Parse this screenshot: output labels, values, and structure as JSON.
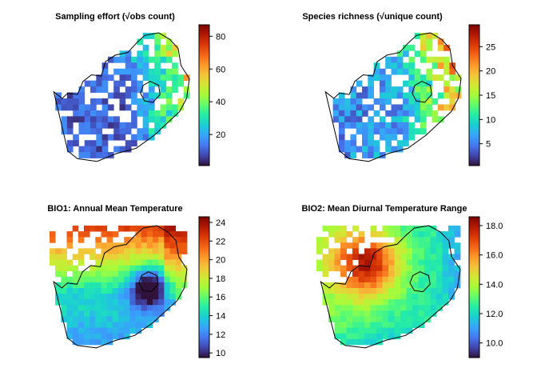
{
  "chart_data": [
    {
      "type": "heatmap",
      "title": "Sampling effort (√obs count)",
      "region": "South Africa",
      "colormap": "turbo",
      "range": [
        1,
        87
      ],
      "colorbar_ticks": [
        "20",
        "40",
        "60",
        "80"
      ],
      "colorbar_tick_values": [
        20,
        40,
        60,
        80
      ],
      "grid": false,
      "legend": "colorbar-right"
    },
    {
      "type": "heatmap",
      "title": "Species richness (√unique count)",
      "region": "South Africa",
      "colormap": "turbo",
      "range": [
        0.5,
        29.5
      ],
      "colorbar_ticks": [
        "5",
        "10",
        "15",
        "20",
        "25"
      ],
      "colorbar_tick_values": [
        5,
        10,
        15,
        20,
        25
      ],
      "grid": false,
      "legend": "colorbar-right"
    },
    {
      "type": "heatmap",
      "title": "BIO1: Annual Mean Temperature",
      "region": "South Africa",
      "colormap": "turbo",
      "range": [
        9.5,
        24.6
      ],
      "colorbar_ticks": [
        "10",
        "12",
        "14",
        "16",
        "18",
        "20",
        "22",
        "24"
      ],
      "colorbar_tick_values": [
        10,
        12,
        14,
        16,
        18,
        20,
        22,
        24
      ],
      "grid": false,
      "legend": "colorbar-right"
    },
    {
      "type": "heatmap",
      "title": "BIO2: Mean Diurnal Temperature Range",
      "region": "South Africa",
      "colormap": "turbo",
      "range": [
        9.0,
        18.6
      ],
      "colorbar_ticks": [
        "10.0",
        "12.0",
        "14.0",
        "16.0",
        "18.0"
      ],
      "colorbar_tick_values": [
        10,
        12,
        14,
        16,
        18
      ],
      "grid": false,
      "legend": "colorbar-right"
    }
  ]
}
